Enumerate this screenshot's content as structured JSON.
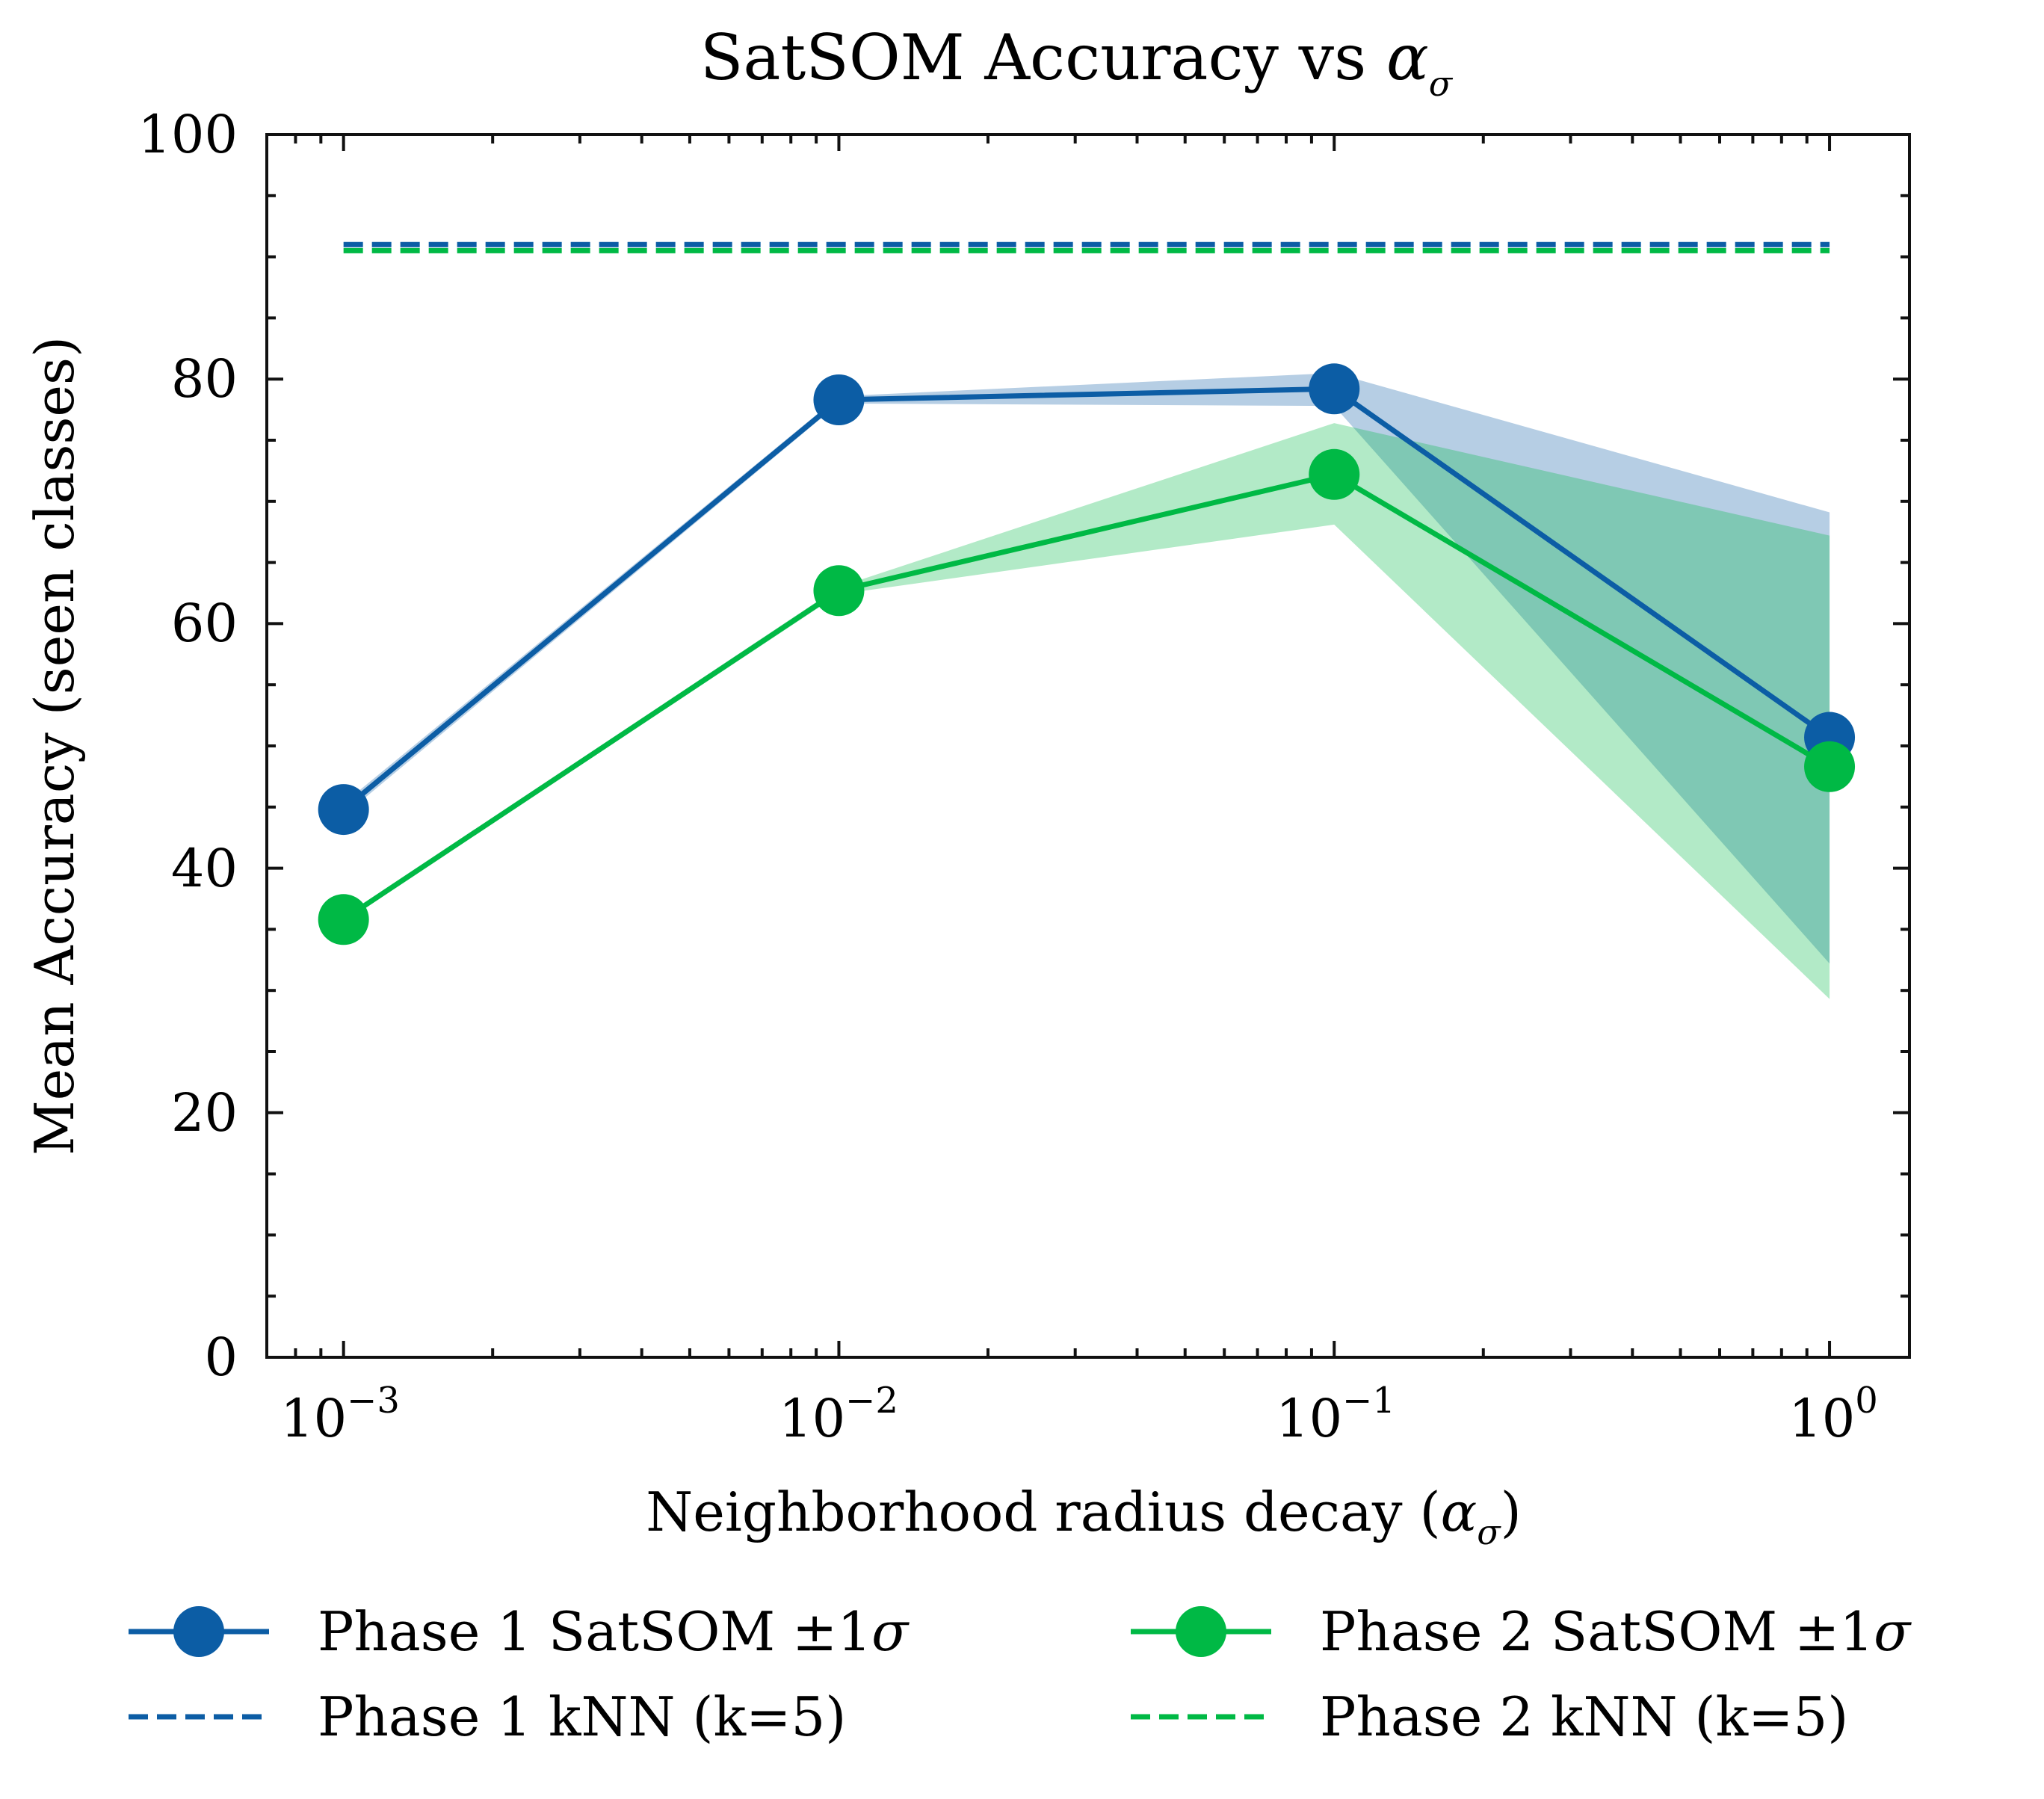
{
  "chart_data": {
    "type": "line",
    "title": "SatSOM Accuracy vs ",
    "title_symbol": "α",
    "title_subscript": "σ",
    "xlabel": "Neighborhood radius decay (",
    "xlabel_symbol": "α",
    "xlabel_subscript": "σ",
    "xlabel_close": ")",
    "ylabel": "Mean Accuracy (seen classes)",
    "xscale": "log",
    "xlim": [
      0.0007,
      1.45
    ],
    "ylim": [
      0,
      100
    ],
    "x": [
      0.001,
      0.01,
      0.1,
      1
    ],
    "x_ticks": [
      {
        "value": 0.001,
        "base": "10",
        "exp": "−3"
      },
      {
        "value": 0.01,
        "base": "10",
        "exp": "−2"
      },
      {
        "value": 0.1,
        "base": "10",
        "exp": "−1"
      },
      {
        "value": 1,
        "base": "10",
        "exp": "0"
      }
    ],
    "y_ticks": [
      0,
      20,
      40,
      60,
      80,
      100
    ],
    "y_tick_labels": [
      "0",
      "20",
      "40",
      "60",
      "80",
      "100"
    ],
    "series": [
      {
        "name": "Phase 1 SatSOM ±1σ",
        "kind": "line-marker-band",
        "color": "#0C5DA5",
        "band_color": "#B6CDE3",
        "values": [
          44.8,
          78.3,
          79.2,
          50.7
        ],
        "lower": [
          44.3,
          78.0,
          77.8,
          32.2
        ],
        "upper": [
          45.3,
          78.6,
          80.5,
          69.1
        ]
      },
      {
        "name": "Phase 2 SatSOM ±1σ",
        "kind": "line-marker-band",
        "color": "#00B945",
        "band_color": "#B3EACA",
        "values": [
          35.8,
          62.7,
          72.2,
          48.3
        ],
        "lower": [
          35.6,
          62.4,
          68.1,
          29.3
        ],
        "upper": [
          36.0,
          63.0,
          76.4,
          67.2
        ]
      },
      {
        "name": "Phase 1 kNN (k=5)",
        "kind": "hline-dashed",
        "color": "#0C5DA5",
        "value": 91.0
      },
      {
        "name": "Phase 2 kNN (k=5)",
        "kind": "hline-dashed",
        "color": "#00B945",
        "value": 90.5
      }
    ],
    "band_overlap_color": "#7FC7B0",
    "legend": {
      "position": "bottom",
      "entries": [
        {
          "label": "Phase 1 SatSOM ±1",
          "symbol": "σ",
          "style": "line-marker",
          "color": "#0C5DA5"
        },
        {
          "label": "Phase 2 SatSOM ±1",
          "symbol": "σ",
          "style": "line-marker",
          "color": "#00B945"
        },
        {
          "label": "Phase 1 kNN (k=5)",
          "symbol": "",
          "style": "dashed",
          "color": "#0C5DA5"
        },
        {
          "label": "Phase 2 kNN (k=5)",
          "symbol": "",
          "style": "dashed",
          "color": "#00B945"
        }
      ]
    },
    "grid": false
  }
}
